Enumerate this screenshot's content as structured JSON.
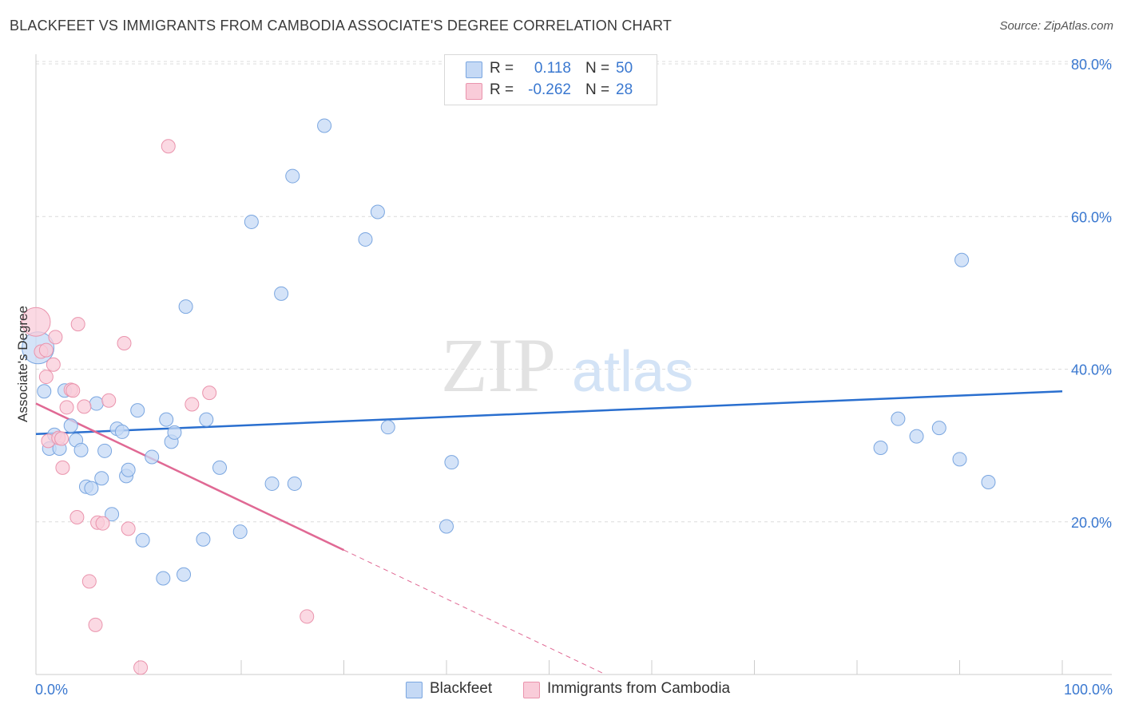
{
  "title": "BLACKFEET VS IMMIGRANTS FROM CAMBODIA ASSOCIATE'S DEGREE CORRELATION CHART",
  "source": "Source: ZipAtlas.com",
  "watermark": {
    "zip": "ZIP",
    "atlas": "atlas"
  },
  "colors": {
    "blue_fill": "#c5d9f5",
    "blue_stroke": "#7aa6e0",
    "blue_line": "#2a6fcf",
    "pink_fill": "#f9ccd9",
    "pink_stroke": "#ea94ad",
    "pink_line": "#e06994",
    "axis_text": "#3a78d0"
  },
  "legend_top": [
    {
      "label": "R =",
      "r": "0.118",
      "n_label": "N =",
      "n": "50",
      "color": "#c5d9f5",
      "border": "#7aa6e0"
    },
    {
      "label": "R =",
      "r": "-0.262",
      "n_label": "N =",
      "n": "28",
      "color": "#f9ccd9",
      "border": "#ea94ad"
    }
  ],
  "legend_bottom": [
    {
      "label": "Blackfeet",
      "color": "#c5d9f5",
      "border": "#7aa6e0"
    },
    {
      "label": "Immigrants from Cambodia",
      "color": "#f9ccd9",
      "border": "#ea94ad"
    }
  ],
  "chart_data": {
    "type": "scatter",
    "title": "BLACKFEET VS IMMIGRANTS FROM CAMBODIA ASSOCIATE'S DEGREE CORRELATION CHART",
    "xlabel": "",
    "ylabel": "Associate's Degree",
    "xlim": [
      0,
      100
    ],
    "ylim": [
      0,
      80
    ],
    "x_tick_labels": [
      "0.0%",
      "100.0%"
    ],
    "y_ticks": [
      20,
      40,
      60,
      80
    ],
    "y_tick_labels": [
      "20.0%",
      "40.0%",
      "60.0%",
      "80.0%"
    ],
    "grid": true,
    "series": [
      {
        "name": "Blackfeet",
        "color": "#c5d9f5",
        "points": [
          [
            0.2,
            42.8
          ],
          [
            0.8,
            37.1
          ],
          [
            1.3,
            29.6
          ],
          [
            1.8,
            31.4
          ],
          [
            2.3,
            29.6
          ],
          [
            2.8,
            37.2
          ],
          [
            3.4,
            32.6
          ],
          [
            3.9,
            30.7
          ],
          [
            4.4,
            29.4
          ],
          [
            4.9,
            24.6
          ],
          [
            5.4,
            24.4
          ],
          [
            5.9,
            35.5
          ],
          [
            6.4,
            25.7
          ],
          [
            6.7,
            29.3
          ],
          [
            7.4,
            21.0
          ],
          [
            7.9,
            32.2
          ],
          [
            8.4,
            31.8
          ],
          [
            8.8,
            26.0
          ],
          [
            9.0,
            26.8
          ],
          [
            9.9,
            34.6
          ],
          [
            10.4,
            17.6
          ],
          [
            11.3,
            28.5
          ],
          [
            12.4,
            12.6
          ],
          [
            12.7,
            33.4
          ],
          [
            13.2,
            30.5
          ],
          [
            13.5,
            31.7
          ],
          [
            14.4,
            13.1
          ],
          [
            14.6,
            48.2
          ],
          [
            16.3,
            17.7
          ],
          [
            16.6,
            33.4
          ],
          [
            17.9,
            27.1
          ],
          [
            19.9,
            18.7
          ],
          [
            21.0,
            59.3
          ],
          [
            23.0,
            25.0
          ],
          [
            23.9,
            49.9
          ],
          [
            25.0,
            65.3
          ],
          [
            25.2,
            25.0
          ],
          [
            28.1,
            71.9
          ],
          [
            32.1,
            57.0
          ],
          [
            33.3,
            60.6
          ],
          [
            34.3,
            32.4
          ],
          [
            40.0,
            19.4
          ],
          [
            40.5,
            27.8
          ],
          [
            82.3,
            29.7
          ],
          [
            84.0,
            33.5
          ],
          [
            85.8,
            31.2
          ],
          [
            88.0,
            32.3
          ],
          [
            90.0,
            28.2
          ],
          [
            90.2,
            54.3
          ],
          [
            92.8,
            25.2
          ]
        ],
        "trend": {
          "x": [
            0,
            100
          ],
          "y": [
            31.5,
            37.1
          ]
        }
      },
      {
        "name": "Immigrants from Cambodia",
        "color": "#f9ccd9",
        "points": [
          [
            0.0,
            46.2
          ],
          [
            0.5,
            42.3
          ],
          [
            1.0,
            39.0
          ],
          [
            1.2,
            30.6
          ],
          [
            1.7,
            40.6
          ],
          [
            1.9,
            44.2
          ],
          [
            2.2,
            31.0
          ],
          [
            2.5,
            30.9
          ],
          [
            2.6,
            27.1
          ],
          [
            3.0,
            35.0
          ],
          [
            3.4,
            37.3
          ],
          [
            3.6,
            37.2
          ],
          [
            4.0,
            20.6
          ],
          [
            4.1,
            45.9
          ],
          [
            4.7,
            35.1
          ],
          [
            5.2,
            12.2
          ],
          [
            5.8,
            6.5
          ],
          [
            6.0,
            19.9
          ],
          [
            6.5,
            19.8
          ],
          [
            7.1,
            35.9
          ],
          [
            8.6,
            43.4
          ],
          [
            9.0,
            19.1
          ],
          [
            10.2,
            0.9
          ],
          [
            12.9,
            69.2
          ],
          [
            15.2,
            35.4
          ],
          [
            16.9,
            36.9
          ],
          [
            26.4,
            7.6
          ],
          [
            1.0,
            42.5
          ]
        ],
        "trend": {
          "x": [
            0,
            30
          ],
          "y": [
            35.5,
            16.3
          ]
        },
        "trend_extension": {
          "x": [
            30,
            55.5
          ],
          "y": [
            16.3,
            0
          ]
        }
      }
    ]
  }
}
